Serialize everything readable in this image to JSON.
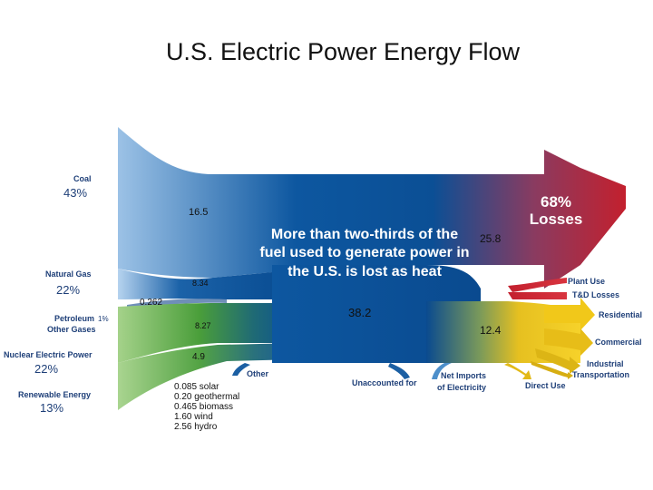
{
  "title": "U.S. Electric Power Energy Flow",
  "sources": {
    "coal": {
      "label": "Coal",
      "percent": "43%"
    },
    "natural_gas": {
      "label": "Natural Gas",
      "percent": "22%"
    },
    "petroleum": {
      "label": "Petroleum",
      "percent": "1%"
    },
    "other_gases": {
      "label": "Other Gases"
    },
    "nuclear": {
      "label": "Nuclear Electric Power",
      "percent": "22%"
    },
    "renewable": {
      "label": "Renewable Energy",
      "percent": "13%"
    }
  },
  "values": {
    "coal": "16.5",
    "natural_gas": "8.34",
    "petroleum": "0.262",
    "nuclear": "8.27",
    "renewable": "4.9",
    "losses": "25.8",
    "total": "38.2",
    "net_generation": "12.4"
  },
  "renewables_breakdown": [
    "0.085 solar",
    "0.20 geothermal",
    "0.465 biomass",
    "1.60 wind",
    "2.56 hydro"
  ],
  "center_note": [
    "More than two-thirds of the",
    "fuel used to generate power in",
    "the U.S. is lost as heat"
  ],
  "losses": {
    "percent": "68%",
    "label": "Losses"
  },
  "destinations": {
    "plant_use": "Plant Use",
    "td_losses": "T&D Losses",
    "residential": "Residential",
    "commercial": "Commercial",
    "industrial": "Industrial",
    "transportation": "Transportation",
    "direct_use": "Direct Use",
    "net_imports_line1": "Net Imports",
    "net_imports_line2": "of Electricity",
    "unaccounted": "Unaccounted for",
    "other": "Other"
  },
  "colors": {
    "input_blue": "#0d57a0",
    "loss_red": "#c3202e",
    "output_yellow": "#f0c419",
    "renewable_green": "#5fae3c"
  }
}
